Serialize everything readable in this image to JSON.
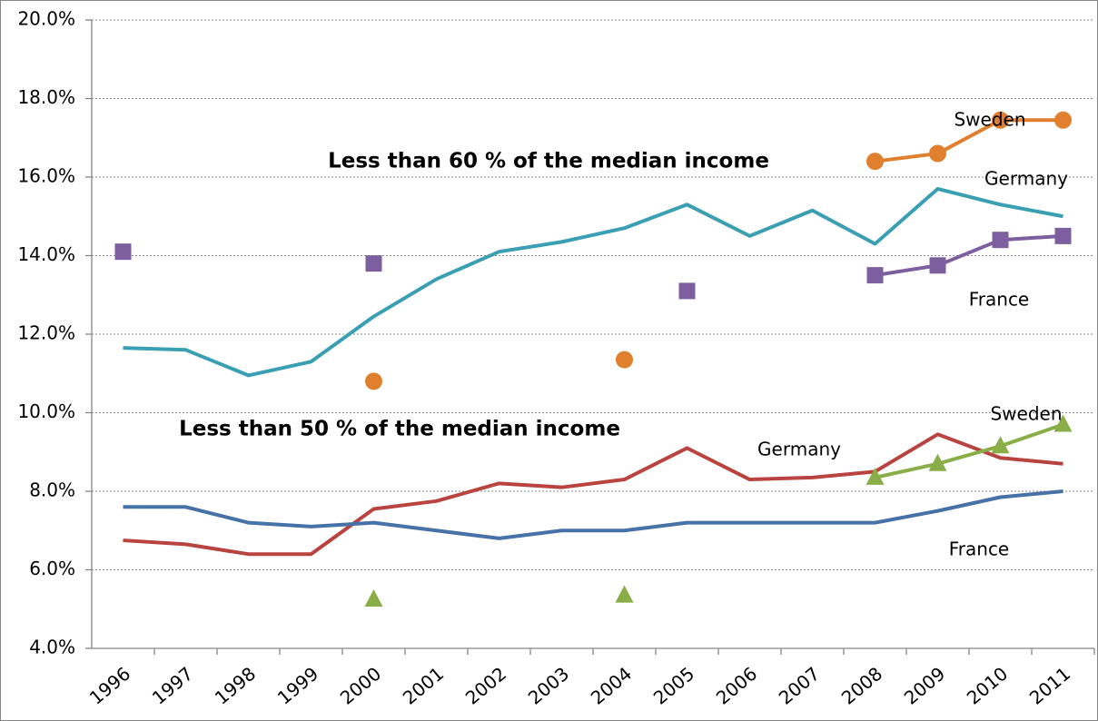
{
  "chart_data": {
    "type": "line",
    "annotations": [
      "Less than 60 % of the median income",
      "Less than 50 % of the median income"
    ],
    "categories": [
      "1996",
      "1997",
      "1998",
      "1999",
      "2000",
      "2001",
      "2002",
      "2003",
      "2004",
      "2005",
      "2006",
      "2007",
      "2008",
      "2009",
      "2010",
      "2011"
    ],
    "series": [
      {
        "name": "Sweden",
        "color": "#e0802f",
        "marker": "circle",
        "values": [
          null,
          null,
          null,
          null,
          10.8,
          null,
          null,
          null,
          11.35,
          null,
          null,
          null,
          16.4,
          16.6,
          17.45,
          17.45
        ]
      },
      {
        "name": "Germany",
        "color": "#3b9fb4",
        "marker": null,
        "values": [
          11.65,
          11.6,
          10.95,
          11.3,
          12.45,
          13.4,
          14.1,
          14.35,
          14.7,
          15.3,
          14.5,
          15.15,
          14.3,
          15.7,
          15.3,
          15.0
        ]
      },
      {
        "name": "France",
        "color": "#7d5fa0",
        "marker": "square",
        "values": [
          14.1,
          null,
          null,
          null,
          13.8,
          null,
          null,
          null,
          null,
          13.1,
          null,
          null,
          13.5,
          13.75,
          14.4,
          14.5
        ]
      },
      {
        "name": "Germany",
        "color": "#b9433f",
        "marker": null,
        "values": [
          6.75,
          6.65,
          6.4,
          6.4,
          7.55,
          7.75,
          8.2,
          8.1,
          8.3,
          9.1,
          8.3,
          8.35,
          8.5,
          9.45,
          8.85,
          8.7
        ]
      },
      {
        "name": "Sweden",
        "color": "#8aae47",
        "marker": "triangle",
        "values": [
          null,
          null,
          null,
          null,
          5.25,
          null,
          null,
          null,
          5.35,
          null,
          null,
          null,
          8.35,
          8.7,
          9.15,
          9.7
        ]
      },
      {
        "name": "France",
        "color": "#4672a8",
        "marker": null,
        "values": [
          7.6,
          7.6,
          7.2,
          7.1,
          7.2,
          7.0,
          6.8,
          7.0,
          7.0,
          7.2,
          7.2,
          7.2,
          7.2,
          7.5,
          7.85,
          8.0
        ]
      }
    ],
    "ylim": [
      4,
      20
    ],
    "yticks": [
      {
        "value": 4,
        "label": "4.0%"
      },
      {
        "value": 6,
        "label": "6.0%"
      },
      {
        "value": 8,
        "label": "8.0%"
      },
      {
        "value": 10,
        "label": "10.0%"
      },
      {
        "value": 12,
        "label": "12.0%"
      },
      {
        "value": 14,
        "label": "14.0%"
      },
      {
        "value": 16,
        "label": "16.0%"
      },
      {
        "value": 18,
        "label": "18.0%"
      },
      {
        "value": 20,
        "label": "20.0%"
      }
    ],
    "grid": true
  }
}
